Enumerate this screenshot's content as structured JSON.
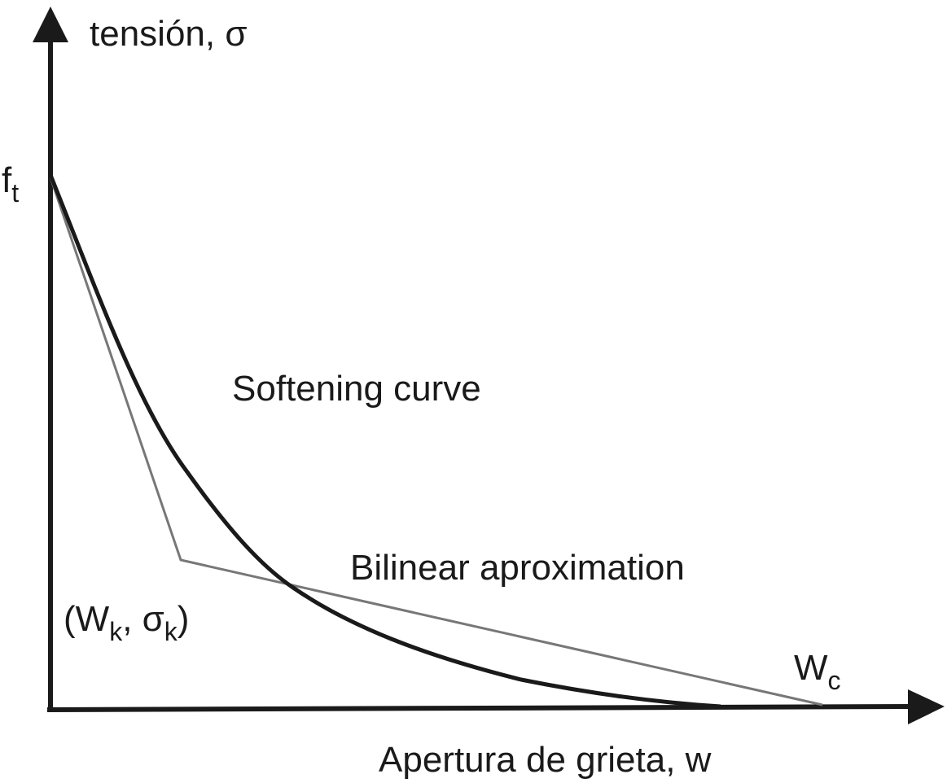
{
  "y_axis": {
    "label": "tensión, σ"
  },
  "x_axis": {
    "label": "Apertura de grieta, w"
  },
  "peak": {
    "main": "f",
    "sub": "t"
  },
  "curve_label": "Softening curve",
  "bilinear_label": "Bilinear aproximation",
  "kink": {
    "parts": [
      "(W",
      "k",
      ", σ",
      "k",
      ")"
    ]
  },
  "end": {
    "main": "W",
    "sub": "c"
  }
}
